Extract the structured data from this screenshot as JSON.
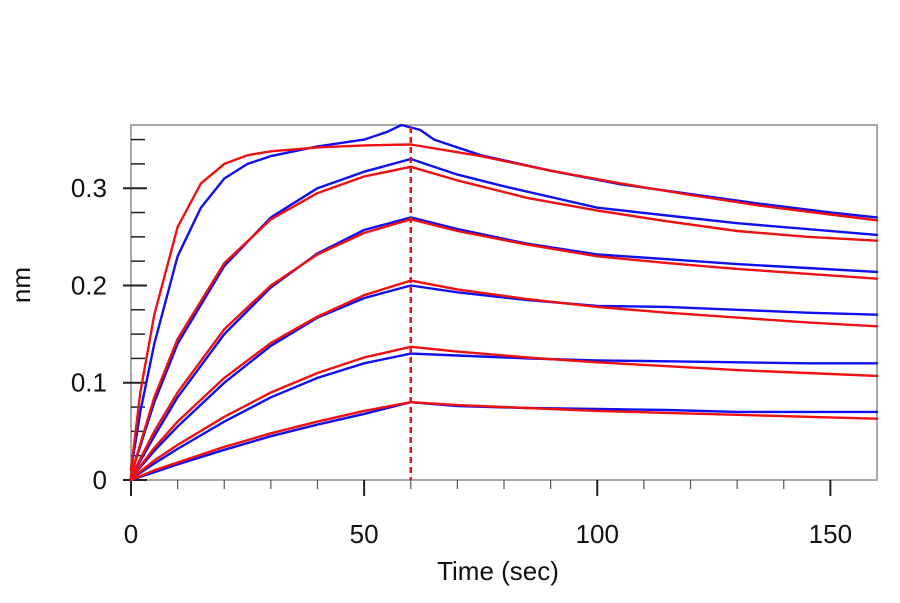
{
  "chart_data": {
    "type": "line",
    "title": "",
    "xlabel": "Time (sec)",
    "ylabel": "nm",
    "xlim": [
      0,
      160
    ],
    "ylim": [
      0,
      0.365
    ],
    "x_ticks": [
      0,
      50,
      100,
      150
    ],
    "x_tick_labels": [
      "0",
      "50",
      "100",
      "150"
    ],
    "y_ticks": [
      0,
      0.1,
      0.2,
      0.3
    ],
    "y_tick_labels": [
      "0",
      "0.1",
      "0.2",
      "0.3"
    ],
    "grid": false,
    "legend": "none",
    "marker_x": 60,
    "colors": {
      "measured": "#1010ee",
      "fit": "#ee1111",
      "marker": "#ee1111",
      "frame": "#a8a8a8"
    },
    "series": [
      {
        "role": "measured",
        "color": "#1010ee",
        "points": [
          [
            0,
            0.01
          ],
          [
            2,
            0.07
          ],
          [
            5,
            0.14
          ],
          [
            10,
            0.23
          ],
          [
            15,
            0.28
          ],
          [
            20,
            0.31
          ],
          [
            25,
            0.325
          ],
          [
            30,
            0.333
          ],
          [
            40,
            0.343
          ],
          [
            50,
            0.35
          ],
          [
            55,
            0.358
          ],
          [
            58,
            0.365
          ],
          [
            62,
            0.36
          ],
          [
            65,
            0.35
          ],
          [
            75,
            0.334
          ],
          [
            90,
            0.318
          ],
          [
            105,
            0.304
          ],
          [
            120,
            0.294
          ],
          [
            135,
            0.284
          ],
          [
            150,
            0.275
          ],
          [
            160,
            0.27
          ]
        ]
      },
      {
        "role": "fit",
        "color": "#ee1111",
        "points": [
          [
            0,
            0.01
          ],
          [
            2,
            0.09
          ],
          [
            5,
            0.17
          ],
          [
            10,
            0.26
          ],
          [
            15,
            0.305
          ],
          [
            20,
            0.325
          ],
          [
            25,
            0.334
          ],
          [
            30,
            0.338
          ],
          [
            40,
            0.342
          ],
          [
            50,
            0.344
          ],
          [
            60,
            0.345
          ],
          [
            75,
            0.333
          ],
          [
            90,
            0.318
          ],
          [
            105,
            0.305
          ],
          [
            120,
            0.293
          ],
          [
            135,
            0.282
          ],
          [
            150,
            0.273
          ],
          [
            160,
            0.267
          ]
        ]
      },
      {
        "role": "measured",
        "color": "#1010ee",
        "points": [
          [
            0,
            0.005
          ],
          [
            5,
            0.08
          ],
          [
            10,
            0.14
          ],
          [
            20,
            0.22
          ],
          [
            30,
            0.27
          ],
          [
            40,
            0.3
          ],
          [
            50,
            0.317
          ],
          [
            60,
            0.33
          ],
          [
            70,
            0.314
          ],
          [
            80,
            0.302
          ],
          [
            90,
            0.291
          ],
          [
            100,
            0.28
          ],
          [
            115,
            0.272
          ],
          [
            130,
            0.264
          ],
          [
            145,
            0.258
          ],
          [
            160,
            0.252
          ]
        ]
      },
      {
        "role": "fit",
        "color": "#ee1111",
        "points": [
          [
            0,
            0.005
          ],
          [
            5,
            0.085
          ],
          [
            10,
            0.145
          ],
          [
            20,
            0.223
          ],
          [
            30,
            0.268
          ],
          [
            40,
            0.295
          ],
          [
            50,
            0.312
          ],
          [
            60,
            0.322
          ],
          [
            70,
            0.308
          ],
          [
            85,
            0.29
          ],
          [
            100,
            0.277
          ],
          [
            115,
            0.266
          ],
          [
            130,
            0.256
          ],
          [
            145,
            0.25
          ],
          [
            160,
            0.246
          ]
        ]
      },
      {
        "role": "measured",
        "color": "#1010ee",
        "points": [
          [
            0,
            0.003
          ],
          [
            5,
            0.045
          ],
          [
            10,
            0.085
          ],
          [
            20,
            0.15
          ],
          [
            30,
            0.198
          ],
          [
            40,
            0.233
          ],
          [
            50,
            0.257
          ],
          [
            60,
            0.27
          ],
          [
            70,
            0.258
          ],
          [
            85,
            0.243
          ],
          [
            100,
            0.232
          ],
          [
            115,
            0.227
          ],
          [
            130,
            0.222
          ],
          [
            145,
            0.218
          ],
          [
            160,
            0.214
          ]
        ]
      },
      {
        "role": "fit",
        "color": "#ee1111",
        "points": [
          [
            0,
            0.003
          ],
          [
            5,
            0.05
          ],
          [
            10,
            0.09
          ],
          [
            20,
            0.155
          ],
          [
            30,
            0.2
          ],
          [
            40,
            0.232
          ],
          [
            50,
            0.254
          ],
          [
            60,
            0.268
          ],
          [
            70,
            0.256
          ],
          [
            85,
            0.242
          ],
          [
            100,
            0.23
          ],
          [
            115,
            0.223
          ],
          [
            130,
            0.217
          ],
          [
            145,
            0.212
          ],
          [
            160,
            0.207
          ]
        ]
      },
      {
        "role": "measured",
        "color": "#1010ee",
        "points": [
          [
            0,
            0.002
          ],
          [
            5,
            0.03
          ],
          [
            10,
            0.055
          ],
          [
            20,
            0.1
          ],
          [
            30,
            0.138
          ],
          [
            40,
            0.167
          ],
          [
            50,
            0.187
          ],
          [
            60,
            0.2
          ],
          [
            70,
            0.193
          ],
          [
            85,
            0.185
          ],
          [
            100,
            0.179
          ],
          [
            115,
            0.178
          ],
          [
            130,
            0.175
          ],
          [
            145,
            0.172
          ],
          [
            160,
            0.17
          ]
        ]
      },
      {
        "role": "fit",
        "color": "#ee1111",
        "points": [
          [
            0,
            0.002
          ],
          [
            5,
            0.033
          ],
          [
            10,
            0.06
          ],
          [
            20,
            0.105
          ],
          [
            30,
            0.141
          ],
          [
            40,
            0.168
          ],
          [
            50,
            0.19
          ],
          [
            60,
            0.205
          ],
          [
            70,
            0.196
          ],
          [
            85,
            0.186
          ],
          [
            100,
            0.178
          ],
          [
            115,
            0.172
          ],
          [
            130,
            0.167
          ],
          [
            145,
            0.162
          ],
          [
            160,
            0.158
          ]
        ]
      },
      {
        "role": "measured",
        "color": "#1010ee",
        "points": [
          [
            0,
            0.001
          ],
          [
            5,
            0.017
          ],
          [
            10,
            0.032
          ],
          [
            20,
            0.06
          ],
          [
            30,
            0.085
          ],
          [
            40,
            0.105
          ],
          [
            50,
            0.12
          ],
          [
            60,
            0.13
          ],
          [
            70,
            0.128
          ],
          [
            85,
            0.125
          ],
          [
            100,
            0.123
          ],
          [
            115,
            0.122
          ],
          [
            130,
            0.121
          ],
          [
            145,
            0.12
          ],
          [
            160,
            0.12
          ]
        ]
      },
      {
        "role": "fit",
        "color": "#ee1111",
        "points": [
          [
            0,
            0.001
          ],
          [
            5,
            0.02
          ],
          [
            10,
            0.036
          ],
          [
            20,
            0.065
          ],
          [
            30,
            0.09
          ],
          [
            40,
            0.11
          ],
          [
            50,
            0.126
          ],
          [
            60,
            0.137
          ],
          [
            70,
            0.132
          ],
          [
            85,
            0.126
          ],
          [
            100,
            0.121
          ],
          [
            115,
            0.117
          ],
          [
            130,
            0.113
          ],
          [
            145,
            0.11
          ],
          [
            160,
            0.107
          ]
        ]
      },
      {
        "role": "measured",
        "color": "#1010ee",
        "points": [
          [
            0,
            0.0
          ],
          [
            5,
            0.008
          ],
          [
            10,
            0.016
          ],
          [
            20,
            0.031
          ],
          [
            30,
            0.045
          ],
          [
            40,
            0.057
          ],
          [
            50,
            0.068
          ],
          [
            60,
            0.08
          ],
          [
            70,
            0.076
          ],
          [
            85,
            0.074
          ],
          [
            100,
            0.073
          ],
          [
            115,
            0.072
          ],
          [
            130,
            0.07
          ],
          [
            145,
            0.07
          ],
          [
            160,
            0.07
          ]
        ]
      },
      {
        "role": "fit",
        "color": "#ee1111",
        "points": [
          [
            0,
            0.0
          ],
          [
            5,
            0.01
          ],
          [
            10,
            0.018
          ],
          [
            20,
            0.034
          ],
          [
            30,
            0.048
          ],
          [
            40,
            0.06
          ],
          [
            50,
            0.071
          ],
          [
            60,
            0.08
          ],
          [
            70,
            0.077
          ],
          [
            85,
            0.074
          ],
          [
            100,
            0.071
          ],
          [
            115,
            0.069
          ],
          [
            130,
            0.067
          ],
          [
            145,
            0.065
          ],
          [
            160,
            0.063
          ]
        ]
      }
    ]
  }
}
